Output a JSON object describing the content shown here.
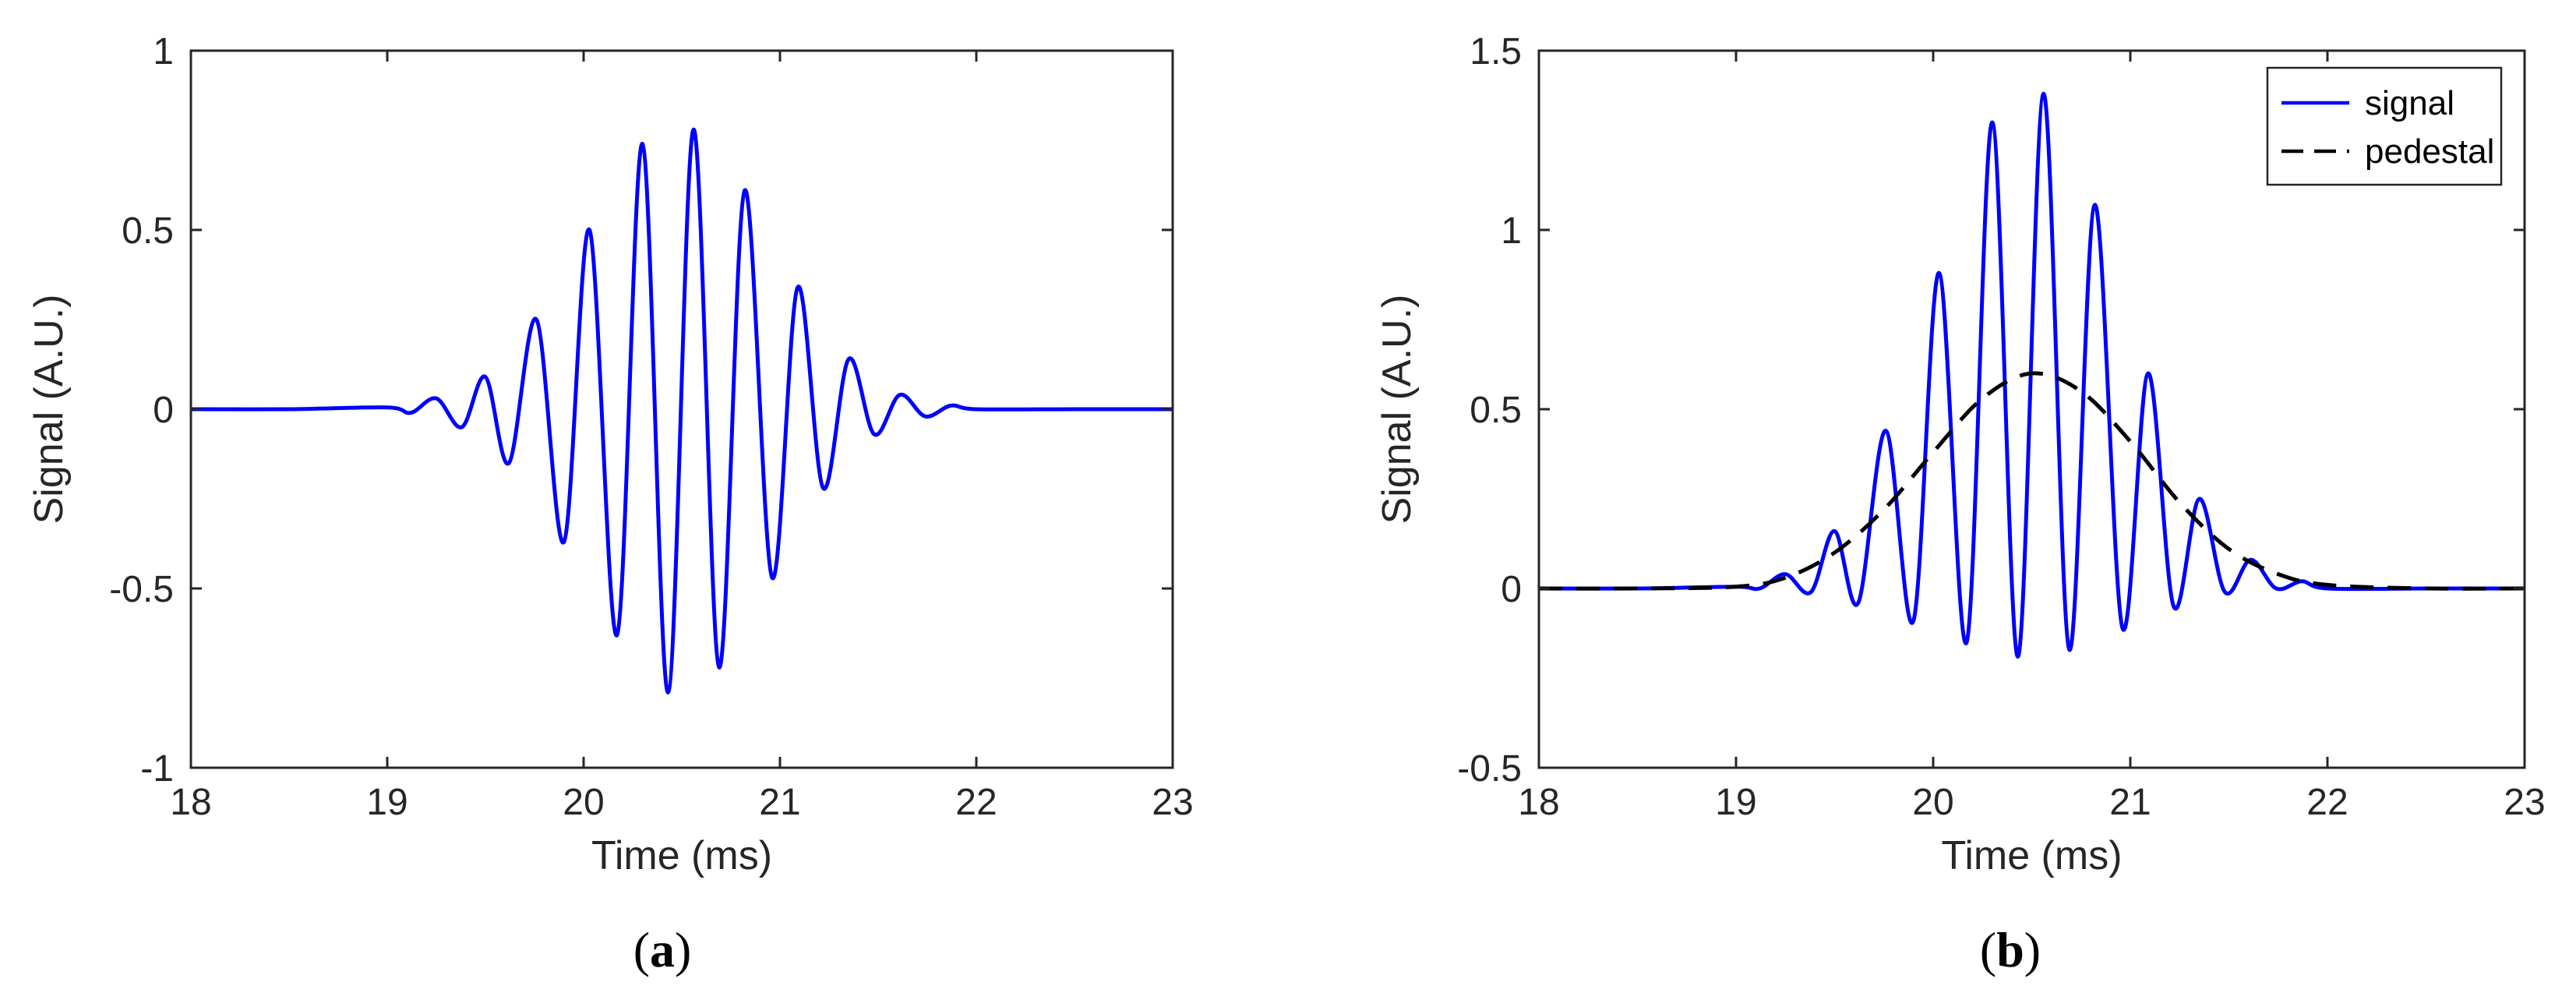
{
  "chart_data": [
    {
      "type": "line",
      "panel_label": "a",
      "xlabel": "Time (ms)",
      "ylabel": "Signal (A.U.)",
      "xlim": [
        18,
        23
      ],
      "ylim": [
        -1,
        1
      ],
      "xticks": [
        18,
        19,
        20,
        21,
        22,
        23
      ],
      "yticks": [
        -1,
        -0.5,
        0,
        0.5,
        1
      ],
      "ytick_labels": [
        "-1",
        "-0.5",
        "0",
        "0.5",
        "1"
      ],
      "grid": false,
      "series": [
        {
          "color": "#0000ff",
          "style": "solid",
          "x": [
            18.0,
            18.5,
            19.0,
            19.12,
            19.25,
            19.38,
            19.5,
            19.62,
            19.76,
            19.9,
            20.03,
            20.17,
            20.3,
            20.43,
            20.56,
            20.69,
            20.82,
            20.96,
            21.09,
            21.22,
            21.35,
            21.48,
            21.61,
            21.74,
            21.87,
            22.0,
            22.5,
            23.0
          ],
          "y": [
            0.0,
            0.0,
            0.005,
            -0.01,
            0.03,
            -0.05,
            0.09,
            -0.15,
            0.25,
            -0.37,
            0.5,
            -0.63,
            0.74,
            -0.79,
            0.78,
            -0.72,
            0.61,
            -0.47,
            0.34,
            -0.22,
            0.14,
            -0.07,
            0.04,
            -0.02,
            0.01,
            0.0,
            0.0,
            0.0
          ]
        }
      ]
    },
    {
      "type": "line",
      "panel_label": "b",
      "xlabel": "Time (ms)",
      "ylabel": "Signal (A.U.)",
      "xlim": [
        18,
        23
      ],
      "ylim": [
        -0.5,
        1.5
      ],
      "xticks": [
        18,
        19,
        20,
        21,
        22,
        23
      ],
      "yticks": [
        -0.5,
        0,
        0.5,
        1,
        1.5
      ],
      "ytick_labels": [
        "-0.5",
        "0",
        "0.5",
        "1",
        "1.5"
      ],
      "grid": false,
      "legend": {
        "position": "top-right"
      },
      "series": [
        {
          "name": "signal",
          "color": "#0000ff",
          "style": "solid",
          "x": [
            18.0,
            18.5,
            19.0,
            19.12,
            19.25,
            19.38,
            19.5,
            19.62,
            19.76,
            19.9,
            20.03,
            20.17,
            20.3,
            20.43,
            20.56,
            20.69,
            20.82,
            20.96,
            21.09,
            21.22,
            21.35,
            21.48,
            21.61,
            21.74,
            21.87,
            22.0,
            22.5,
            23.0
          ],
          "y": [
            0.0,
            0.0,
            0.005,
            0.0,
            0.04,
            -0.01,
            0.16,
            -0.04,
            0.44,
            -0.09,
            0.88,
            -0.15,
            1.3,
            -0.19,
            1.38,
            -0.17,
            1.07,
            -0.11,
            0.6,
            -0.05,
            0.25,
            -0.01,
            0.08,
            0.0,
            0.02,
            0.0,
            0.0,
            0.0
          ]
        },
        {
          "name": "pedestal",
          "color": "#000000",
          "style": "dashed",
          "x": [
            18.0,
            18.5,
            19.0,
            19.25,
            19.5,
            19.75,
            20.0,
            20.25,
            20.5,
            20.75,
            21.0,
            21.25,
            21.5,
            21.75,
            22.0,
            22.5,
            23.0
          ],
          "y": [
            0.0,
            0.0,
            0.005,
            0.03,
            0.1,
            0.22,
            0.38,
            0.53,
            0.6,
            0.55,
            0.41,
            0.24,
            0.11,
            0.04,
            0.01,
            0.0,
            0.0
          ]
        }
      ]
    }
  ]
}
